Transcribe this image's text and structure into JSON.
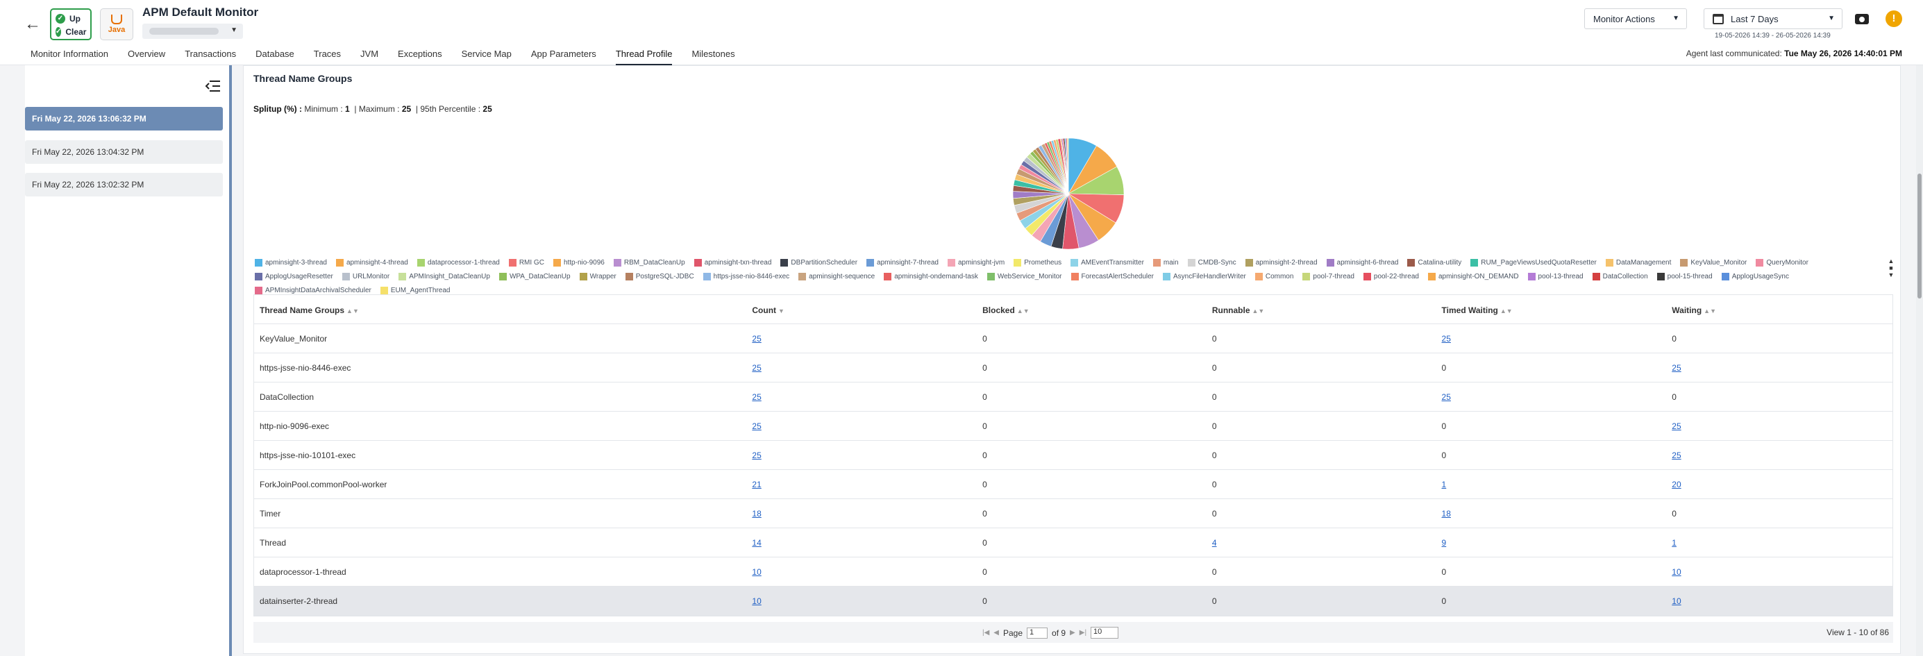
{
  "header": {
    "monitor_title": "APM Default Monitor",
    "status_up": "Up",
    "status_clear": "Clear",
    "java_label": "Java",
    "monitor_actions": "Monitor Actions",
    "date_range": "Last 7 Days",
    "date_sub": "19-05-2026 14:39 - 26-05-2026 14:39",
    "agent_label": "Agent last communicated:",
    "agent_time": "Tue May 26, 2026 14:40:01 PM",
    "alert_symbol": "!"
  },
  "tabs": [
    {
      "label": "Monitor Information"
    },
    {
      "label": "Overview"
    },
    {
      "label": "Transactions"
    },
    {
      "label": "Database"
    },
    {
      "label": "Traces"
    },
    {
      "label": "JVM"
    },
    {
      "label": "Exceptions"
    },
    {
      "label": "Service Map"
    },
    {
      "label": "App Parameters"
    },
    {
      "label": "Thread Profile"
    },
    {
      "label": "Milestones"
    }
  ],
  "snapshots": [
    {
      "label": "Fri May 22, 2026 13:06:32 PM"
    },
    {
      "label": "Fri May 22, 2026 13:04:32 PM"
    },
    {
      "label": "Fri May 22, 2026 13:02:32 PM"
    }
  ],
  "section": {
    "title": "Thread Name Groups",
    "splitup_label": "Splitup (%) :",
    "min_label": "Minimum :",
    "min_value": "1",
    "max_label": "| Maximum :",
    "max_value": "25",
    "p95_label": "| 95th Percentile :",
    "p95_value": "25"
  },
  "chart_data": {
    "type": "pie",
    "series_names": [
      "apminsight-3-thread",
      "apminsight-4-thread",
      "dataprocessor-1-thread",
      "RMI GC",
      "http-nio-9096",
      "RBM_DataCleanUp",
      "apminsight-txn-thread",
      "DBPartitionScheduler",
      "apminsight-7-thread",
      "apminsight-jvm",
      "Prometheus",
      "AMEventTransmitter",
      "main",
      "CMDB-Sync",
      "apminsight-2-thread",
      "apminsight-6-thread",
      "Catalina-utility",
      "RUM_PageViewsUsedQuotaResetter",
      "DataManagement",
      "KeyValue_Monitor",
      "QueryMonitor",
      "ApplogUsageResetter",
      "URLMonitor",
      "APMInsight_DataCleanUp",
      "WPA_DataCleanUp",
      "Wrapper",
      "PostgreSQL-JDBC",
      "https-jsse-nio-8446-exec",
      "apminsight-sequence",
      "apminsight-ondemand-task",
      "WebService_Monitor",
      "ForecastAlertScheduler",
      "AsyncFileHandlerWriter",
      "Common",
      "pool-7-thread",
      "pool-22-thread",
      "apminsight-ON_DEMAND",
      "pool-13-thread",
      "DataCollection",
      "pool-15-thread",
      "ApplogUsageSync",
      "APMInsightDataArchivalScheduler",
      "EUM_AgentThread"
    ],
    "colors": [
      "#4fb3e6",
      "#f5a94a",
      "#a8d46f",
      "#f07070",
      "#f5a94a",
      "#b98ed0",
      "#e0566b",
      "#3a3f4a",
      "#6b9bd6",
      "#f4a5b5",
      "#f2e96a",
      "#8dd3e8",
      "#e69a7a",
      "#d4d4d4",
      "#b0a060",
      "#a07cc6",
      "#9b5a4a",
      "#3bbfa5",
      "#f5c26b",
      "#c79a70",
      "#f08aa0",
      "#6a6fa8",
      "#b8c0cc",
      "#c7e09a",
      "#8fbf5a",
      "#b2a24a",
      "#b58060",
      "#8fb8e6",
      "#c9a480",
      "#e86060",
      "#7fbf6a",
      "#f08060",
      "#7fcce6",
      "#f5a970",
      "#c6d77a",
      "#e64f5f",
      "#f5a94a",
      "#b47cd6",
      "#d44040",
      "#3a3a3a",
      "#5a8fdc",
      "#e46a8a",
      "#f5e06a"
    ],
    "slices": [
      25,
      25,
      25,
      25,
      21,
      18,
      14,
      10,
      10,
      9,
      8,
      8,
      7,
      7,
      6,
      6,
      5,
      5,
      5,
      5,
      4,
      4,
      4,
      4,
      3,
      3,
      3,
      3,
      3,
      2,
      2,
      2,
      2,
      2,
      2,
      2,
      1,
      1,
      1,
      1,
      1,
      1,
      1
    ]
  },
  "legend": [
    {
      "label": "apminsight-3-thread",
      "color": "#4fb3e6"
    },
    {
      "label": "apminsight-4-thread",
      "color": "#f5a94a"
    },
    {
      "label": "dataprocessor-1-thread",
      "color": "#a8d46f"
    },
    {
      "label": "RMI GC",
      "color": "#f07070"
    },
    {
      "label": "http-nio-9096",
      "color": "#f5a94a"
    },
    {
      "label": "RBM_DataCleanUp",
      "color": "#b98ed0"
    },
    {
      "label": "apminsight-txn-thread",
      "color": "#e0566b"
    },
    {
      "label": "DBPartitionScheduler",
      "color": "#3a3f4a"
    },
    {
      "label": "apminsight-7-thread",
      "color": "#6b9bd6"
    },
    {
      "label": "apminsight-jvm",
      "color": "#f4a5b5"
    },
    {
      "label": "Prometheus",
      "color": "#f2e96a"
    },
    {
      "label": "AMEventTransmitter",
      "color": "#8dd3e8"
    },
    {
      "label": "main",
      "color": "#e69a7a"
    },
    {
      "label": "CMDB-Sync",
      "color": "#d4d4d4"
    },
    {
      "label": "apminsight-2-thread",
      "color": "#b0a060"
    },
    {
      "label": "apminsight-6-thread",
      "color": "#a07cc6"
    },
    {
      "label": "Catalina-utility",
      "color": "#9b5a4a"
    },
    {
      "label": "RUM_PageViewsUsedQuotaResetter",
      "color": "#3bbfa5"
    },
    {
      "label": "DataManagement",
      "color": "#f5c26b"
    },
    {
      "label": "KeyValue_Monitor",
      "color": "#c79a70"
    },
    {
      "label": "QueryMonitor",
      "color": "#f08aa0"
    },
    {
      "label": "ApplogUsageResetter",
      "color": "#6a6fa8"
    },
    {
      "label": "URLMonitor",
      "color": "#b8c0cc"
    },
    {
      "label": "APMInsight_DataCleanUp",
      "color": "#c7e09a"
    },
    {
      "label": "WPA_DataCleanUp",
      "color": "#8fbf5a"
    },
    {
      "label": "Wrapper",
      "color": "#b2a24a"
    },
    {
      "label": "PostgreSQL-JDBC",
      "color": "#b58060"
    },
    {
      "label": "https-jsse-nio-8446-exec",
      "color": "#8fb8e6"
    },
    {
      "label": "apminsight-sequence",
      "color": "#c9a480"
    },
    {
      "label": "apminsight-ondemand-task",
      "color": "#e86060"
    },
    {
      "label": "WebService_Monitor",
      "color": "#7fbf6a"
    },
    {
      "label": "ForecastAlertScheduler",
      "color": "#f08060"
    },
    {
      "label": "AsyncFileHandlerWriter",
      "color": "#7fcce6"
    },
    {
      "label": "Common",
      "color": "#f5a970"
    },
    {
      "label": "pool-7-thread",
      "color": "#c6d77a"
    },
    {
      "label": "pool-22-thread",
      "color": "#e64f5f"
    },
    {
      "label": "apminsight-ON_DEMAND",
      "color": "#f5a94a"
    },
    {
      "label": "pool-13-thread",
      "color": "#b47cd6"
    },
    {
      "label": "DataCollection",
      "color": "#d44040"
    },
    {
      "label": "pool-15-thread",
      "color": "#3a3a3a"
    },
    {
      "label": "ApplogUsageSync",
      "color": "#5a8fdc"
    },
    {
      "label": "APMInsightDataArchivalScheduler",
      "color": "#e46a8a"
    },
    {
      "label": "EUM_AgentThread",
      "color": "#f5e06a"
    }
  ],
  "table": {
    "columns": [
      "Thread Name Groups",
      "Count",
      "Blocked",
      "Runnable",
      "Timed Waiting",
      "Waiting"
    ],
    "rows": [
      {
        "name": "KeyValue_Monitor",
        "count": "25",
        "blocked": "0",
        "runnable": "0",
        "timed": "25",
        "waiting": "0"
      },
      {
        "name": "https-jsse-nio-8446-exec",
        "count": "25",
        "blocked": "0",
        "runnable": "0",
        "timed": "0",
        "waiting": "25"
      },
      {
        "name": "DataCollection",
        "count": "25",
        "blocked": "0",
        "runnable": "0",
        "timed": "25",
        "waiting": "0"
      },
      {
        "name": "http-nio-9096-exec",
        "count": "25",
        "blocked": "0",
        "runnable": "0",
        "timed": "0",
        "waiting": "25"
      },
      {
        "name": "https-jsse-nio-10101-exec",
        "count": "25",
        "blocked": "0",
        "runnable": "0",
        "timed": "0",
        "waiting": "25"
      },
      {
        "name": "ForkJoinPool.commonPool-worker",
        "count": "21",
        "blocked": "0",
        "runnable": "0",
        "timed": "1",
        "waiting": "20"
      },
      {
        "name": "Timer",
        "count": "18",
        "blocked": "0",
        "runnable": "0",
        "timed": "18",
        "waiting": "0"
      },
      {
        "name": "Thread",
        "count": "14",
        "blocked": "0",
        "runnable": "4",
        "timed": "9",
        "waiting": "1"
      },
      {
        "name": "dataprocessor-1-thread",
        "count": "10",
        "blocked": "0",
        "runnable": "0",
        "timed": "0",
        "waiting": "10"
      },
      {
        "name": "datainserter-2-thread",
        "count": "10",
        "blocked": "0",
        "runnable": "0",
        "timed": "0",
        "waiting": "10"
      }
    ]
  },
  "pager": {
    "page_label": "Page",
    "page_value": "1",
    "of_label": "of 9",
    "per_page": "10",
    "view_text": "View 1 - 10 of 86"
  }
}
